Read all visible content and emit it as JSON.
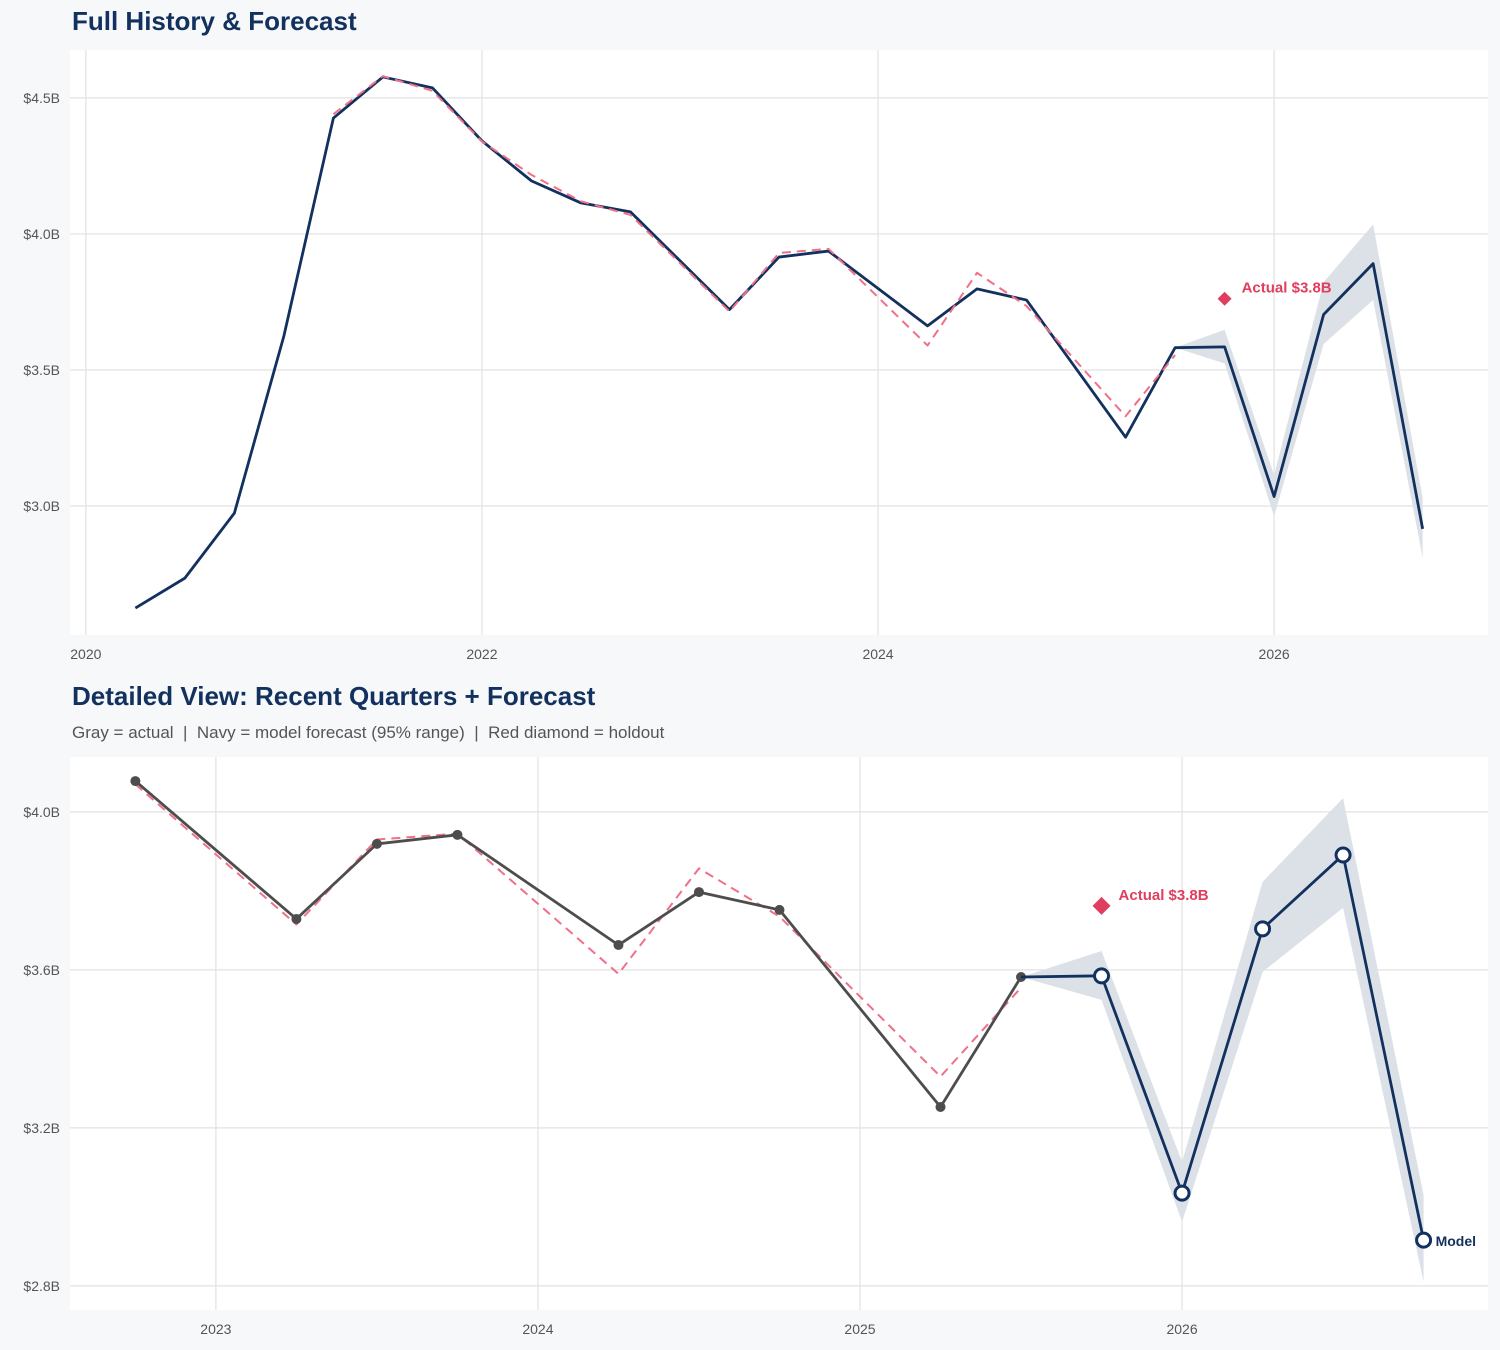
{
  "colors": {
    "navy": "#12315e",
    "actual_gray": "#4d4d4d",
    "fitted_red": "#ef7088",
    "holdout_red": "#e03e5e",
    "band": "#dce1e8",
    "grid": "#e2e2e2"
  },
  "chart_data": [
    {
      "type": "line",
      "title": "Full History & Forecast",
      "xlim": [
        2019.92,
        2027.08
      ],
      "ylim": [
        2.526,
        4.676
      ],
      "x_ticks": [
        2020,
        2022,
        2024,
        2026
      ],
      "x_tick_labels": [
        "2020",
        "2022",
        "2024",
        "2026"
      ],
      "y_ticks": [
        3.0,
        3.5,
        4.0,
        4.5
      ],
      "y_tick_labels": [
        "$3.0B",
        "$3.5B",
        "$4.0B",
        "$4.5B"
      ],
      "grid": true,
      "series": [
        {
          "role": "history_and_forecast",
          "color": "#12315e",
          "x": [
            2020.25,
            2020.5,
            2020.75,
            2021.0,
            2021.25,
            2021.5,
            2021.75,
            2022.0,
            2022.25,
            2022.5,
            2022.75,
            2023.25,
            2023.5,
            2023.75,
            2024.25,
            2024.5,
            2024.75,
            2025.25,
            2025.5,
            2025.75,
            2026.0,
            2026.25,
            2026.5,
            2026.75
          ],
          "y": [
            2.625,
            2.735,
            2.974,
            3.625,
            4.426,
            4.577,
            4.537,
            4.342,
            4.195,
            4.114,
            4.081,
            3.722,
            3.915,
            3.937,
            3.662,
            3.798,
            3.757,
            3.253,
            3.582,
            3.585,
            3.035,
            3.704,
            3.891,
            2.916
          ]
        },
        {
          "role": "fitted",
          "color": "#ef7088",
          "dashed": true,
          "x": [
            2021.25,
            2021.5,
            2021.75,
            2022.0,
            2022.25,
            2022.5,
            2022.75,
            2023.25,
            2023.5,
            2023.75,
            2024.25,
            2024.5,
            2024.75,
            2025.25,
            2025.5
          ],
          "y": [
            4.44,
            4.58,
            4.526,
            4.34,
            4.217,
            4.12,
            4.07,
            3.715,
            3.93,
            3.945,
            3.59,
            3.857,
            3.735,
            3.33,
            3.555
          ]
        }
      ],
      "band": {
        "x": [
          2025.5,
          2025.75,
          2026.0,
          2026.25,
          2026.5,
          2026.75
        ],
        "lower": [
          3.582,
          3.524,
          2.962,
          3.595,
          3.757,
          2.81
        ],
        "upper": [
          3.582,
          3.648,
          3.114,
          3.823,
          4.035,
          3.03
        ]
      },
      "holdout": {
        "x": 2025.75,
        "y": 3.762,
        "label": "Actual $3.8B"
      }
    },
    {
      "type": "line",
      "title": "Detailed View: Recent Quarters + Forecast",
      "subtitle": "Gray = actual  |  Navy = model forecast (95% range)  |  Red diamond = holdout",
      "xlim": [
        2022.547,
        2026.95
      ],
      "ylim": [
        2.739,
        4.139
      ],
      "x_ticks": [
        2023,
        2024,
        2025,
        2026
      ],
      "x_tick_labels": [
        "2023",
        "2024",
        "2025",
        "2026"
      ],
      "y_ticks": [
        2.8,
        3.2,
        3.6,
        4.0
      ],
      "y_tick_labels": [
        "$2.8B",
        "$3.2B",
        "$3.6B",
        "$4.0B"
      ],
      "grid": true,
      "series": [
        {
          "role": "fitted",
          "color": "#ef7088",
          "dashed": true,
          "x": [
            2022.75,
            2023.25,
            2023.5,
            2023.75,
            2024.25,
            2024.5,
            2024.75,
            2025.25,
            2025.5
          ],
          "y": [
            4.07,
            3.715,
            3.93,
            3.945,
            3.59,
            3.857,
            3.735,
            3.33,
            3.555
          ]
        },
        {
          "role": "actual",
          "color": "#4d4d4d",
          "markers": true,
          "x": [
            2022.75,
            2023.25,
            2023.5,
            2023.75,
            2024.25,
            2024.5,
            2024.75,
            2025.25,
            2025.5
          ],
          "y": [
            4.078,
            3.729,
            3.919,
            3.942,
            3.663,
            3.797,
            3.752,
            3.253,
            3.582
          ]
        },
        {
          "role": "forecast",
          "color": "#12315e",
          "open_markers": true,
          "end_label": "Model",
          "x": [
            2025.5,
            2025.75,
            2026.0,
            2026.25,
            2026.5,
            2026.75
          ],
          "y": [
            3.582,
            3.585,
            3.035,
            3.704,
            3.891,
            2.916
          ]
        }
      ],
      "band": {
        "x": [
          2025.5,
          2025.75,
          2026.0,
          2026.25,
          2026.5,
          2026.75
        ],
        "lower": [
          3.582,
          3.524,
          2.962,
          3.595,
          3.757,
          2.81
        ],
        "upper": [
          3.582,
          3.648,
          3.114,
          3.823,
          4.035,
          3.03
        ]
      },
      "holdout": {
        "x": 2025.75,
        "y": 3.762,
        "label": "Actual $3.8B"
      }
    }
  ]
}
